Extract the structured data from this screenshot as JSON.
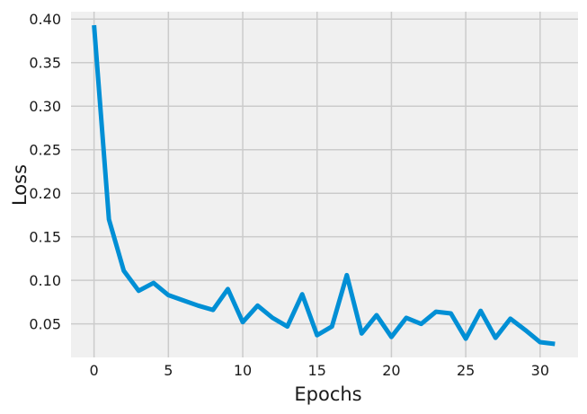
{
  "chart_data": {
    "type": "line",
    "title": "",
    "xlabel": "Epochs",
    "ylabel": "Loss",
    "xlim": [
      -1.55,
      32.55
    ],
    "ylim": [
      0.0115,
      0.4085
    ],
    "xticks": [
      0,
      5,
      10,
      15,
      20,
      25,
      30
    ],
    "yticks": [
      0.05,
      0.1,
      0.15,
      0.2,
      0.25,
      0.3,
      0.35,
      0.4
    ],
    "xtick_labels": [
      "0",
      "5",
      "10",
      "15",
      "20",
      "25",
      "30"
    ],
    "ytick_labels": [
      "0.05",
      "0.10",
      "0.15",
      "0.20",
      "0.25",
      "0.30",
      "0.35",
      "0.40"
    ],
    "grid": true,
    "color": "#008fd5",
    "x": [
      0,
      1,
      2,
      3,
      4,
      5,
      6,
      7,
      8,
      9,
      10,
      11,
      12,
      13,
      14,
      15,
      16,
      17,
      18,
      19,
      20,
      21,
      22,
      23,
      24,
      25,
      26,
      27,
      28,
      29,
      30,
      31
    ],
    "series": [
      {
        "values": [
          0.393,
          0.17,
          0.111,
          0.088,
          0.097,
          0.083,
          0.077,
          0.071,
          0.066,
          0.09,
          0.052,
          0.071,
          0.057,
          0.047,
          0.084,
          0.037,
          0.047,
          0.106,
          0.039,
          0.06,
          0.035,
          0.057,
          0.05,
          0.064,
          0.062,
          0.033,
          0.065,
          0.034,
          0.056,
          0.043,
          0.029,
          0.027
        ]
      }
    ]
  }
}
